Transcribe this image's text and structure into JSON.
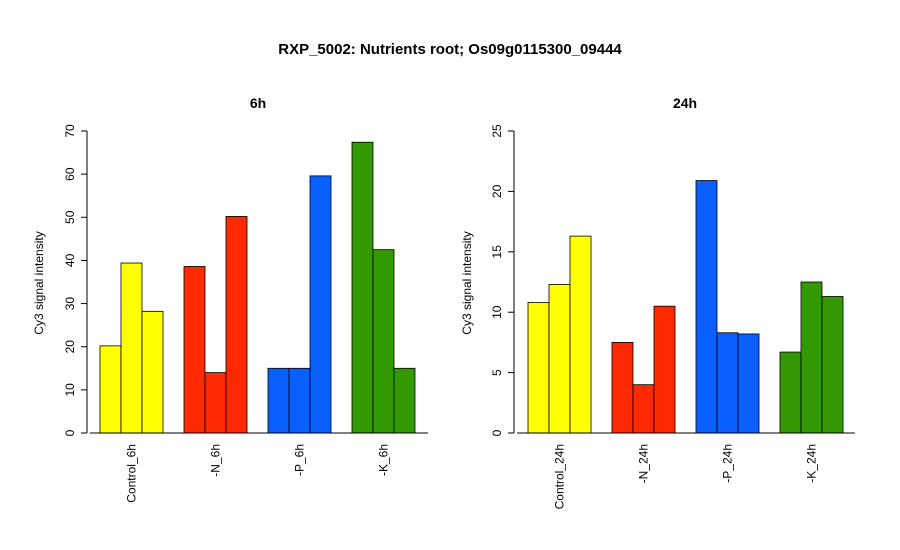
{
  "title": "RXP_5002: Nutrients root; Os09g0115300_09444",
  "chart_data": [
    {
      "type": "bar",
      "title": "6h",
      "ylabel": "Cy3 signal intensity",
      "ylim": [
        0,
        70
      ],
      "yticks": [
        0,
        10,
        20,
        30,
        40,
        50,
        60,
        70
      ],
      "categories": [
        "Control_6h",
        "-N_6h",
        "-P_6h",
        "-K_6h"
      ],
      "colors": [
        "#ffff00",
        "#ff2a00",
        "#0a5fff",
        "#339900"
      ],
      "groups": [
        [
          20.2,
          39.4,
          28.2
        ],
        [
          38.6,
          14.0,
          50.2
        ],
        [
          15.0,
          15.0,
          59.6
        ],
        [
          67.4,
          42.5,
          15.0
        ]
      ]
    },
    {
      "type": "bar",
      "title": "24h",
      "ylabel": "Cy3 signal intensity",
      "ylim": [
        0,
        25
      ],
      "yticks": [
        0,
        5,
        10,
        15,
        20,
        25
      ],
      "categories": [
        "Control_24h",
        "-N_24h",
        "-P_24h",
        "-K_24h"
      ],
      "colors": [
        "#ffff00",
        "#ff2a00",
        "#0a5fff",
        "#339900"
      ],
      "groups": [
        [
          10.8,
          12.3,
          16.3
        ],
        [
          7.5,
          4.0,
          10.5
        ],
        [
          20.9,
          8.3,
          8.2
        ],
        [
          6.7,
          12.5,
          11.3
        ]
      ]
    }
  ]
}
